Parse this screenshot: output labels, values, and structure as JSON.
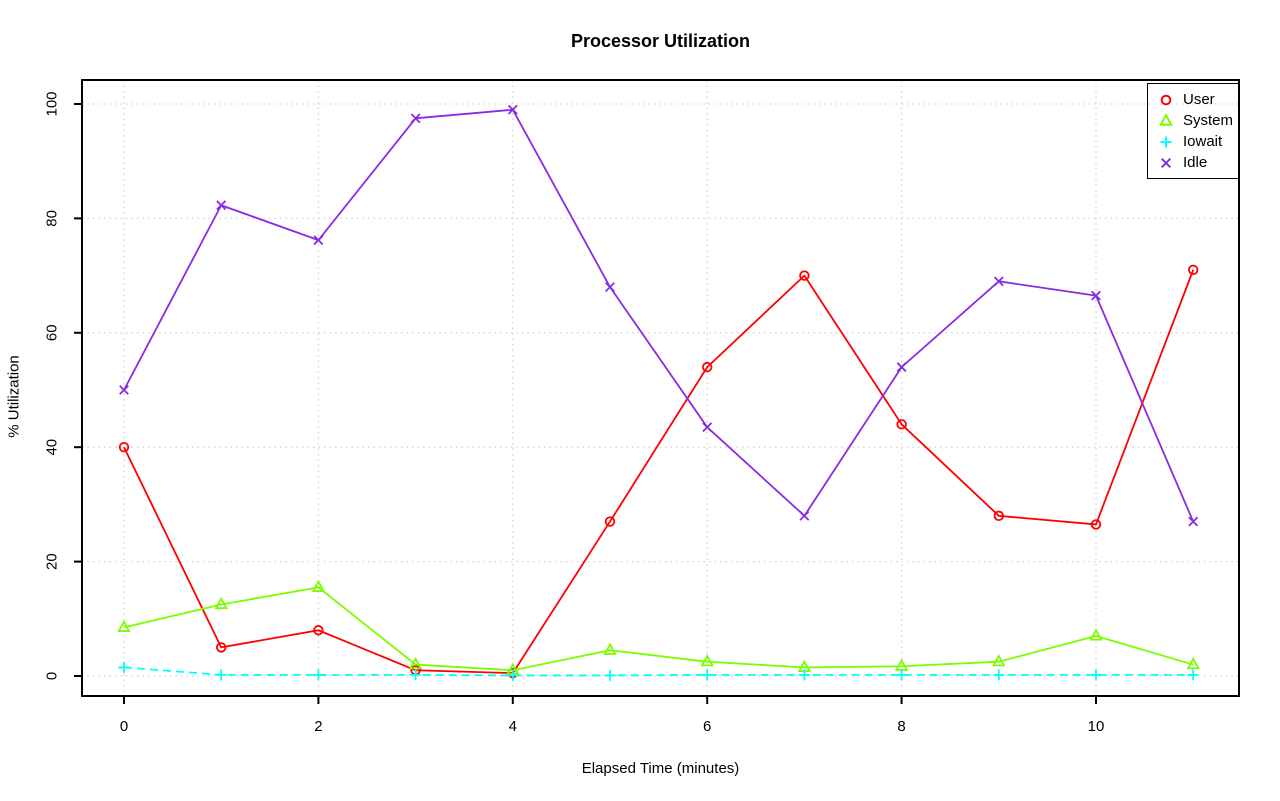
{
  "chart_data": {
    "type": "line",
    "title": "Processor Utilization",
    "xlabel": "Elapsed Time (minutes)",
    "ylabel": "% Utilization",
    "x": [
      0,
      1,
      2,
      3,
      4,
      5,
      6,
      7,
      8,
      9,
      10,
      11
    ],
    "xlim": [
      0,
      11
    ],
    "ylim": [
      0,
      100
    ],
    "x_ticks": [
      0,
      2,
      4,
      6,
      8,
      10
    ],
    "y_ticks": [
      0,
      20,
      40,
      60,
      80,
      100
    ],
    "grid": true,
    "grid_color": "#D3D3D3",
    "axis_color": "#000000",
    "legend_position": "top-right",
    "series": [
      {
        "name": "User",
        "color": "#FF0000",
        "marker": "circle",
        "line_style": "solid",
        "values": [
          40,
          5,
          8,
          1,
          0.5,
          27,
          54,
          70,
          44,
          28,
          26.5,
          71
        ]
      },
      {
        "name": "System",
        "color": "#7CFC00",
        "marker": "triangle",
        "line_style": "solid",
        "values": [
          8.5,
          12.5,
          15.5,
          2,
          1,
          4.5,
          2.5,
          1.5,
          1.7,
          2.5,
          7,
          2
        ]
      },
      {
        "name": "Iowait",
        "color": "#00FFFF",
        "marker": "plus",
        "line_style": "dashed",
        "values": [
          1.5,
          0.2,
          0.2,
          0.2,
          0.1,
          0.1,
          0.2,
          0.2,
          0.2,
          0.2,
          0.2,
          0.2
        ]
      },
      {
        "name": "Idle",
        "color": "#8A2BE2",
        "marker": "x",
        "line_style": "solid",
        "values": [
          50,
          82.3,
          76.2,
          97.5,
          99,
          68,
          43.5,
          28,
          54,
          69,
          66.5,
          27
        ]
      }
    ]
  }
}
